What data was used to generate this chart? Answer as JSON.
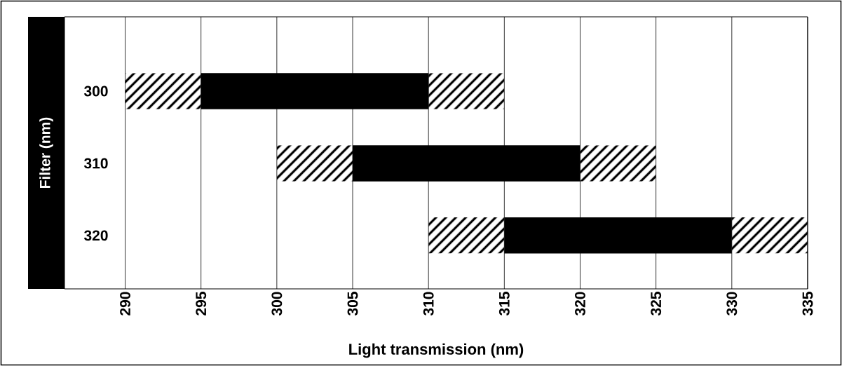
{
  "chart_data": {
    "type": "bar",
    "orientation": "horizontal",
    "xlabel": "Light transmission (nm)",
    "ylabel": "Filter (nm)",
    "categories": [
      "300",
      "310",
      "320"
    ],
    "series": [
      {
        "color": "#000000",
        "base": [
          290,
          300,
          310
        ],
        "values": [
          5,
          5,
          5
        ]
      },
      {
        "color": "#000000",
        "base": [
          295,
          305,
          315
        ],
        "values": [
          15,
          15,
          15
        ]
      },
      {
        "color": "#000000",
        "base": [
          310,
          320,
          330
        ],
        "values": [
          5,
          5,
          5
        ]
      }
    ],
    "xlim": [
      286,
      335
    ],
    "xticks": [
      290,
      295,
      300,
      305,
      310,
      315,
      320,
      325,
      330,
      335
    ],
    "grid": "x"
  }
}
